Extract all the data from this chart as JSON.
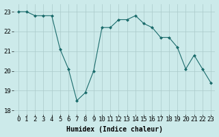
{
  "x": [
    0,
    1,
    2,
    3,
    4,
    5,
    6,
    7,
    8,
    9,
    10,
    11,
    12,
    13,
    14,
    15,
    16,
    17,
    18,
    19,
    20,
    21,
    22,
    23
  ],
  "y": [
    23.0,
    23.0,
    22.8,
    22.8,
    22.8,
    21.1,
    20.1,
    18.5,
    18.9,
    20.0,
    22.2,
    22.2,
    22.6,
    22.6,
    22.8,
    22.4,
    22.2,
    21.7,
    21.7,
    21.2,
    20.1,
    20.8,
    20.1,
    19.4
  ],
  "line_color": "#1a6b6b",
  "marker": "D",
  "marker_size": 2,
  "bg_color": "#cceaea",
  "grid_color": "#aacaca",
  "xlabel": "Humidex (Indice chaleur)",
  "xlim": [
    -0.5,
    23.5
  ],
  "ylim": [
    17.8,
    23.4
  ],
  "xtick_labels": [
    "0",
    "1",
    "2",
    "3",
    "4",
    "5",
    "6",
    "7",
    "8",
    "9",
    "10",
    "11",
    "12",
    "13",
    "14",
    "15",
    "16",
    "17",
    "18",
    "19",
    "20",
    "21",
    "22",
    "23"
  ],
  "yticks": [
    18,
    19,
    20,
    21,
    22,
    23
  ],
  "xlabel_fontsize": 7,
  "tick_fontsize": 6.5
}
